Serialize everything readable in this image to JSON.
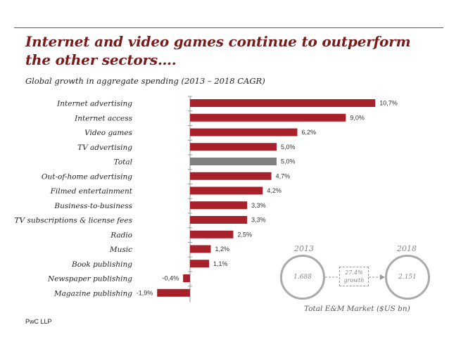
{
  "title": "Internet and video games continue to outperform the other sectors….",
  "subtitle": "Global growth in aggregate spending (2013 – 2018 CAGR)",
  "footer": "PwC LLP",
  "colors": {
    "bar": "#a8202a",
    "highlight": "#808080",
    "accent": "#7a1a1a"
  },
  "chart_data": {
    "type": "bar",
    "orientation": "horizontal",
    "categories": [
      "Internet advertising",
      "Internet access",
      "Video games",
      "TV advertising",
      "Total",
      "Out-of-home advertising",
      "Filmed entertainment",
      "Business-to-business",
      "TV subscriptions & license fees",
      "Radio",
      "Music",
      "Book publishing",
      "Newspaper publishing",
      "Magazine publishing"
    ],
    "values": [
      10.7,
      9.0,
      6.2,
      5.0,
      5.0,
      4.7,
      4.2,
      3.3,
      3.3,
      2.5,
      1.2,
      1.1,
      -0.4,
      -1.9
    ],
    "value_labels": [
      "10,7%",
      "9,0%",
      "6,2%",
      "5,0%",
      "5,0%",
      "4,7%",
      "4,2%",
      "3,3%",
      "3,3%",
      "2,5%",
      "1,2%",
      "1,1%",
      "-0,4%",
      "-1,9%"
    ],
    "highlight_category": "Total",
    "unit": "%"
  },
  "market": {
    "year_start": "2013",
    "year_end": "2018",
    "value_start": "1.688",
    "value_end": "2.151",
    "growth_line1": "27.4%",
    "growth_line2": "growth",
    "caption": "Total E&M Market ($US bn)"
  }
}
